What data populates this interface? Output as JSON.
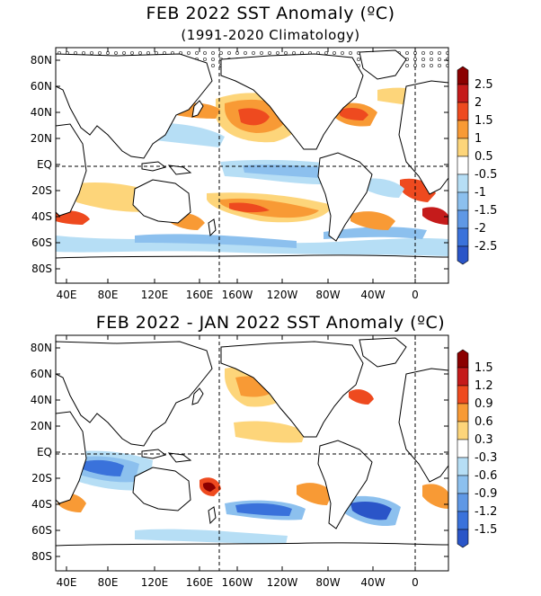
{
  "chart_data": [
    {
      "type": "heatmap",
      "title": "FEB 2022 SST Anomaly (ºC)",
      "subtitle": "(1991-2020 Climatology)",
      "x_ticks": [
        "40E",
        "80E",
        "120E",
        "160E",
        "160W",
        "120W",
        "80W",
        "40W",
        "0"
      ],
      "y_ticks": [
        "80N",
        "60N",
        "40N",
        "20N",
        "EQ",
        "20S",
        "40S",
        "60S",
        "80S"
      ],
      "colorbar": {
        "labels": [
          "2.5",
          "2",
          "1.5",
          "1",
          "0.5",
          "-0.5",
          "-1",
          "-1.5",
          "-2",
          "-2.5"
        ],
        "colors": [
          "#8b0000",
          "#c51b1b",
          "#ee4a1f",
          "#f89a35",
          "#fdd57a",
          "#ffffff",
          "#b6def5",
          "#8cc0ee",
          "#5f98e5",
          "#3a72db",
          "#2a55c8"
        ]
      },
      "features": [
        {
          "region": "North Pacific (30N-45N, 160W-140W)",
          "anomaly": 2.0
        },
        {
          "region": "NW Atlantic / Gulf Stream (40N, 60W)",
          "anomaly": 2.0
        },
        {
          "region": "Equatorial Central-East Pacific (0-10S, 170W-100W)",
          "anomaly": -1.0
        },
        {
          "region": "South Pacific (30S-40S, 150W-110W)",
          "anomaly": 1.5
        },
        {
          "region": "South Atlantic (40S, 50W)",
          "anomaly": 1.5
        },
        {
          "region": "Southern Ocean (55S-65S)",
          "anomaly": -1.0
        }
      ]
    },
    {
      "type": "heatmap",
      "title": "FEB 2022 - JAN 2022 SST Anomaly (ºC)",
      "x_ticks": [
        "40E",
        "80E",
        "120E",
        "160E",
        "160W",
        "120W",
        "80W",
        "40W",
        "0"
      ],
      "y_ticks": [
        "80N",
        "60N",
        "40N",
        "20N",
        "EQ",
        "20S",
        "40S",
        "60S",
        "80S"
      ],
      "colorbar": {
        "labels": [
          "1.5",
          "1.2",
          "0.9",
          "0.6",
          "0.3",
          "-0.3",
          "-0.6",
          "-0.9",
          "-1.2",
          "-1.5"
        ],
        "colors": [
          "#8b0000",
          "#c51b1b",
          "#ee4a1f",
          "#f89a35",
          "#fdd57a",
          "#ffffff",
          "#b6def5",
          "#8cc0ee",
          "#5f98e5",
          "#3a72db",
          "#2a55c8"
        ]
      },
      "features": [
        {
          "region": "Tropical Indian Ocean (5S-25S, 50E-100E)",
          "anomaly": -0.9
        },
        {
          "region": "East of Australia (25S, 160E)",
          "anomaly": 1.2
        },
        {
          "region": "North Pacific (30N-45N, 170W-140W)",
          "anomaly": 0.6
        },
        {
          "region": "South Pacific (35S-45S, 150W-110W)",
          "anomaly": -0.9
        },
        {
          "region": "South Atlantic (40S-50S, 70W-40W)",
          "anomaly": -1.2
        },
        {
          "region": "NW Atlantic (40N, 50W)",
          "anomaly": 0.9
        }
      ]
    }
  ]
}
